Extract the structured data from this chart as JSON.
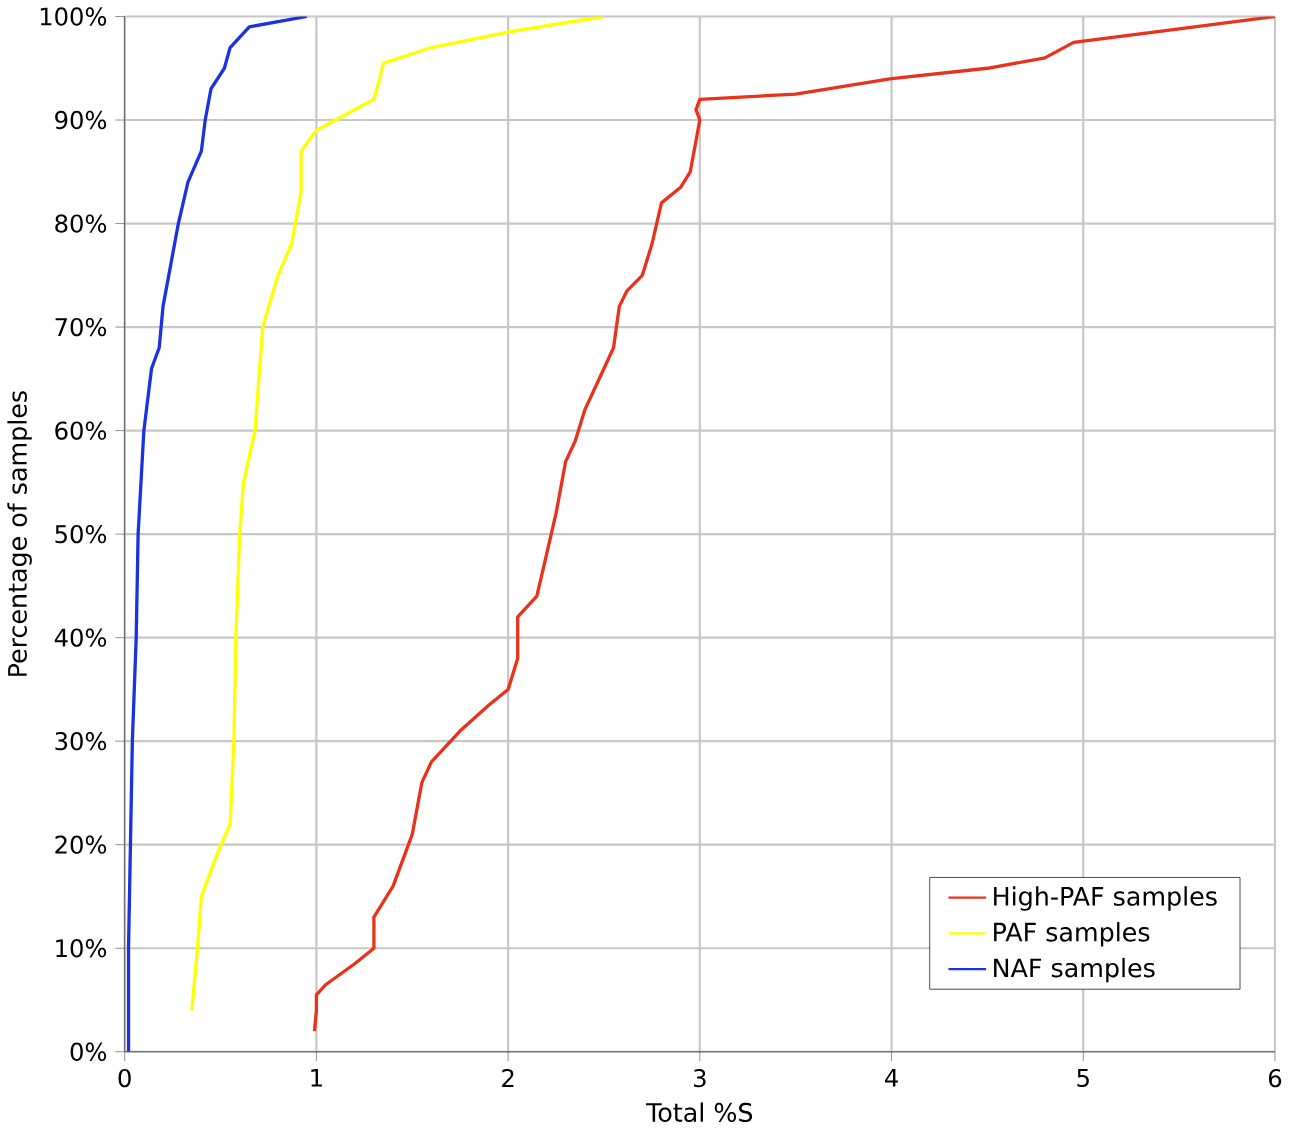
{
  "chart_data": {
    "type": "line",
    "xlabel": "Total %S",
    "ylabel": "Percentage of samples",
    "xlim": [
      0,
      6
    ],
    "xticks": [
      0,
      1,
      2,
      3,
      4,
      5,
      6
    ],
    "ylim": [
      0,
      100
    ],
    "yticks": [
      {
        "value": 0,
        "label": "0%"
      },
      {
        "value": 10,
        "label": "10%"
      },
      {
        "value": 20,
        "label": "20%"
      },
      {
        "value": 30,
        "label": "30%"
      },
      {
        "value": 40,
        "label": "40%"
      },
      {
        "value": 50,
        "label": "50%"
      },
      {
        "value": 60,
        "label": "60%"
      },
      {
        "value": 70,
        "label": "70%"
      },
      {
        "value": 80,
        "label": "80%"
      },
      {
        "value": 90,
        "label": "90%"
      },
      {
        "value": 100,
        "label": "100%"
      }
    ],
    "grid": true,
    "legend": "bottom right",
    "marker": "none",
    "line_style": "solid",
    "series": [
      {
        "name": "High-PAF samples",
        "color": "#e8321a",
        "x": [
          0.99,
          1.0,
          1.0,
          1.05,
          1.2,
          1.3,
          1.3,
          1.4,
          1.5,
          1.55,
          1.6,
          1.75,
          1.9,
          2.0,
          2.05,
          2.05,
          2.15,
          2.2,
          2.25,
          2.3,
          2.35,
          2.4,
          2.45,
          2.5,
          2.55,
          2.58,
          2.62,
          2.7,
          2.75,
          2.8,
          2.9,
          2.95,
          2.98,
          3.0,
          2.98,
          3.0,
          3.5,
          4.0,
          4.5,
          4.8,
          4.95,
          5.5,
          6.0
        ],
        "values": [
          2,
          4,
          5.5,
          6.5,
          8.5,
          10,
          13,
          16,
          21,
          26,
          28,
          31,
          33.5,
          35,
          38,
          42,
          44,
          48,
          52,
          57,
          59,
          62,
          64,
          66,
          68,
          72,
          73.5,
          75,
          78,
          82,
          83.5,
          85,
          88,
          90,
          91,
          92,
          92.5,
          94,
          95,
          96,
          97.5,
          98.8,
          100
        ]
      },
      {
        "name": "PAF samples",
        "color": "#ffff00",
        "x": [
          0.35,
          0.38,
          0.4,
          0.48,
          0.55,
          0.57,
          0.58,
          0.6,
          0.62,
          0.68,
          0.7,
          0.72,
          0.8,
          0.87,
          0.92,
          0.92,
          1.0,
          1.1,
          1.3,
          1.33,
          1.35,
          1.6,
          2.0,
          2.5
        ],
        "values": [
          4,
          10,
          15,
          19,
          22,
          30,
          40,
          50,
          55,
          60,
          65,
          70,
          75,
          78,
          83,
          87,
          89,
          90,
          92,
          94,
          95.5,
          97,
          98.5,
          100
        ]
      },
      {
        "name": "NAF samples",
        "color": "#1a32e0",
        "x": [
          0.02,
          0.02,
          0.03,
          0.04,
          0.06,
          0.07,
          0.1,
          0.14,
          0.18,
          0.2,
          0.25,
          0.28,
          0.33,
          0.4,
          0.42,
          0.45,
          0.52,
          0.55,
          0.65,
          0.95
        ],
        "values": [
          0,
          10,
          20,
          30,
          40,
          50,
          60,
          66,
          68,
          72,
          77,
          80,
          84,
          87,
          90,
          93,
          95,
          97,
          99,
          100
        ]
      }
    ]
  }
}
